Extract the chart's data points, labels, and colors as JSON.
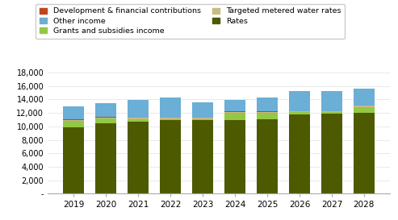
{
  "years": [
    2019,
    2020,
    2021,
    2022,
    2023,
    2024,
    2025,
    2026,
    2027,
    2028
  ],
  "series": {
    "Rates": [
      9900,
      10500,
      10700,
      10900,
      10900,
      10900,
      11100,
      11800,
      11900,
      12000
    ],
    "Grants and subsidies income": [
      900,
      700,
      400,
      200,
      200,
      1100,
      900,
      300,
      200,
      900
    ],
    "Targeted metered water rates": [
      150,
      150,
      150,
      150,
      150,
      150,
      150,
      150,
      150,
      150
    ],
    "Development & financial contributions": [
      50,
      50,
      50,
      50,
      50,
      50,
      50,
      50,
      50,
      50
    ],
    "Other income": [
      2000,
      2100,
      2600,
      3000,
      2300,
      1700,
      2100,
      3000,
      3000,
      2500
    ]
  },
  "colors": {
    "Rates": "#4d5a00",
    "Grants and subsidies income": "#92c846",
    "Targeted metered water rates": "#c9ba82",
    "Development & financial contributions": "#c0441e",
    "Other income": "#6baed6"
  },
  "ylim": [
    0,
    18000
  ],
  "yticks": [
    0,
    2000,
    4000,
    6000,
    8000,
    10000,
    12000,
    14000,
    16000,
    18000
  ],
  "ytick_labels": [
    "-",
    "2,000",
    "4,000",
    "6,000",
    "8,000",
    "10,000",
    "12,000",
    "14,000",
    "16,000",
    "18,000"
  ],
  "legend_order": [
    "Development & financial contributions",
    "Other income",
    "Grants and subsidies income",
    "Targeted metered water rates",
    "Rates"
  ],
  "background_color": "#ffffff",
  "bar_width": 0.65,
  "stack_order": [
    "Rates",
    "Grants and subsidies income",
    "Targeted metered water rates",
    "Development & financial contributions",
    "Other income"
  ]
}
